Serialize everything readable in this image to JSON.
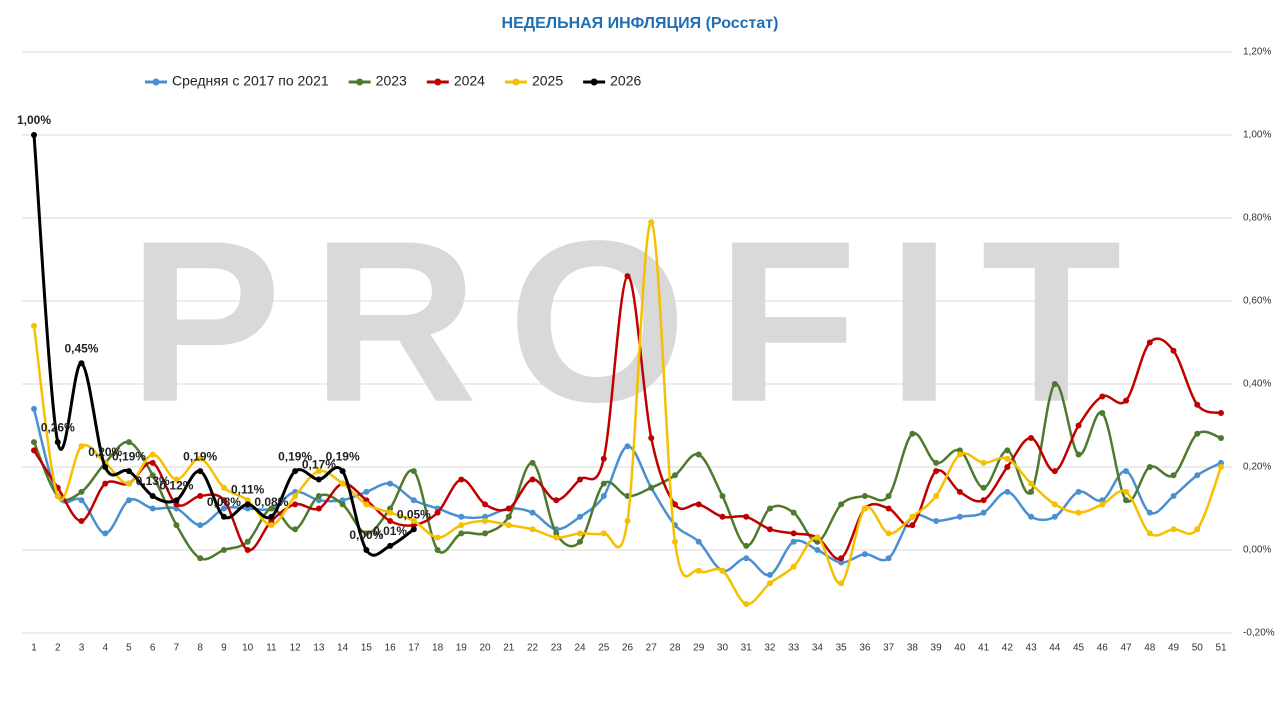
{
  "chart_data": {
    "type": "line",
    "title": "НЕДЕЛЬНАЯ ИНФЛЯЦИЯ (Росстат)",
    "watermark": "PROFIT",
    "categories": [
      "1",
      "2",
      "3",
      "4",
      "5",
      "6",
      "7",
      "8",
      "9",
      "10",
      "11",
      "12",
      "13",
      "14",
      "15",
      "16",
      "17",
      "18",
      "19",
      "20",
      "21",
      "22",
      "23",
      "24",
      "25",
      "26",
      "27",
      "28",
      "29",
      "30",
      "31",
      "32",
      "33",
      "34",
      "35",
      "36",
      "37",
      "38",
      "39",
      "40",
      "41",
      "42",
      "43",
      "44",
      "45",
      "46",
      "47",
      "48",
      "49",
      "50",
      "51"
    ],
    "ylim": [
      -0.2,
      1.2
    ],
    "yticks": [
      {
        "value": -0.2,
        "label": "-0,20%"
      },
      {
        "value": 0,
        "label": "0,00%"
      },
      {
        "value": 0.2,
        "label": "0,20%"
      },
      {
        "value": 0.4,
        "label": "0,40%"
      },
      {
        "value": 0.6,
        "label": "0,60%"
      },
      {
        "value": 0.8,
        "label": "0,80%"
      },
      {
        "value": 1.0,
        "label": "1,00%"
      },
      {
        "value": 1.2,
        "label": "1,20%"
      }
    ],
    "grid": true,
    "legend": "top-left",
    "series": [
      {
        "name": "Средняя с 2017 по 2021",
        "color": "#4a90d0",
        "values": [
          0.34,
          0.13,
          0.12,
          0.04,
          0.12,
          0.1,
          0.1,
          0.06,
          0.1,
          0.1,
          0.1,
          0.14,
          0.12,
          0.12,
          0.14,
          0.16,
          0.12,
          0.1,
          0.08,
          0.08,
          0.1,
          0.09,
          0.05,
          0.08,
          0.13,
          0.25,
          0.15,
          0.06,
          0.02,
          -0.05,
          -0.02,
          -0.06,
          0.02,
          0.0,
          -0.03,
          -0.01,
          -0.02,
          0.08,
          0.07,
          0.08,
          0.09,
          0.14,
          0.08,
          0.08,
          0.14,
          0.12,
          0.19,
          0.09,
          0.13,
          0.18,
          0.21
        ]
      },
      {
        "name": "2023",
        "color": "#4e7a2e",
        "values": [
          0.26,
          0.13,
          0.14,
          0.21,
          0.26,
          0.18,
          0.06,
          -0.02,
          0.0,
          0.02,
          0.1,
          0.05,
          0.13,
          0.11,
          0.04,
          0.1,
          0.19,
          0.0,
          0.04,
          0.04,
          0.08,
          0.21,
          0.04,
          0.02,
          0.16,
          0.13,
          0.15,
          0.18,
          0.23,
          0.13,
          0.01,
          0.1,
          0.09,
          0.02,
          0.11,
          0.13,
          0.13,
          0.28,
          0.21,
          0.24,
          0.15,
          0.24,
          0.14,
          0.4,
          0.23,
          0.33,
          0.12,
          0.2,
          0.18,
          0.28,
          0.27
        ]
      },
      {
        "name": "2024",
        "color": "#c00000",
        "values": [
          0.24,
          0.15,
          0.07,
          0.16,
          0.16,
          0.21,
          0.11,
          0.13,
          0.12,
          0.0,
          0.07,
          0.11,
          0.1,
          0.16,
          0.12,
          0.07,
          0.06,
          0.09,
          0.17,
          0.11,
          0.1,
          0.17,
          0.12,
          0.17,
          0.22,
          0.66,
          0.27,
          0.11,
          0.11,
          0.08,
          0.08,
          0.05,
          0.04,
          0.03,
          -0.02,
          0.1,
          0.1,
          0.06,
          0.19,
          0.14,
          0.12,
          0.2,
          0.27,
          0.19,
          0.3,
          0.37,
          0.36,
          0.5,
          0.48,
          0.35,
          0.33
        ]
      },
      {
        "name": "2025",
        "color": "#f5c000",
        "values": [
          0.54,
          0.13,
          0.25,
          0.21,
          0.16,
          0.23,
          0.17,
          0.22,
          0.15,
          0.12,
          0.06,
          0.13,
          0.19,
          0.16,
          0.11,
          0.09,
          0.07,
          0.03,
          0.06,
          0.07,
          0.06,
          0.05,
          0.03,
          0.04,
          0.04,
          0.07,
          0.79,
          0.02,
          -0.05,
          -0.05,
          -0.13,
          -0.08,
          -0.04,
          0.03,
          -0.08,
          0.1,
          0.04,
          0.08,
          0.13,
          0.23,
          0.21,
          0.22,
          0.16,
          0.11,
          0.09,
          0.11,
          0.14,
          0.04,
          0.05,
          0.05,
          0.2
        ]
      },
      {
        "name": "2026",
        "color": "#000000",
        "values": [
          1.0,
          0.26,
          0.45,
          0.2,
          0.19,
          0.13,
          0.12,
          0.19,
          0.08,
          0.11,
          0.08,
          0.19,
          0.17,
          0.19,
          0.0,
          0.01,
          0.05,
          null,
          null,
          null,
          null,
          null,
          null,
          null,
          null,
          null,
          null,
          null,
          null,
          null,
          null,
          null,
          null,
          null,
          null,
          null,
          null,
          null,
          null,
          null,
          null,
          null,
          null,
          null,
          null,
          null,
          null,
          null,
          null,
          null,
          null
        ],
        "value_labels": [
          "1,00%",
          "0,26%",
          "0,45%",
          "0,20%",
          "0,19%",
          "0,13%",
          "0,12%",
          "0,19%",
          "0,08%",
          "0,11%",
          "0,08%",
          "0,19%",
          "0,17%",
          "0,19%",
          "0,00%",
          "0,01%",
          "0,05%",
          null,
          null,
          null,
          null,
          null,
          null,
          null,
          null,
          null,
          null,
          null,
          null,
          null,
          null,
          null,
          null,
          null,
          null,
          null,
          null,
          null,
          null,
          null,
          null,
          null,
          null,
          null,
          null,
          null,
          null,
          null,
          null,
          null,
          null
        ]
      }
    ]
  }
}
